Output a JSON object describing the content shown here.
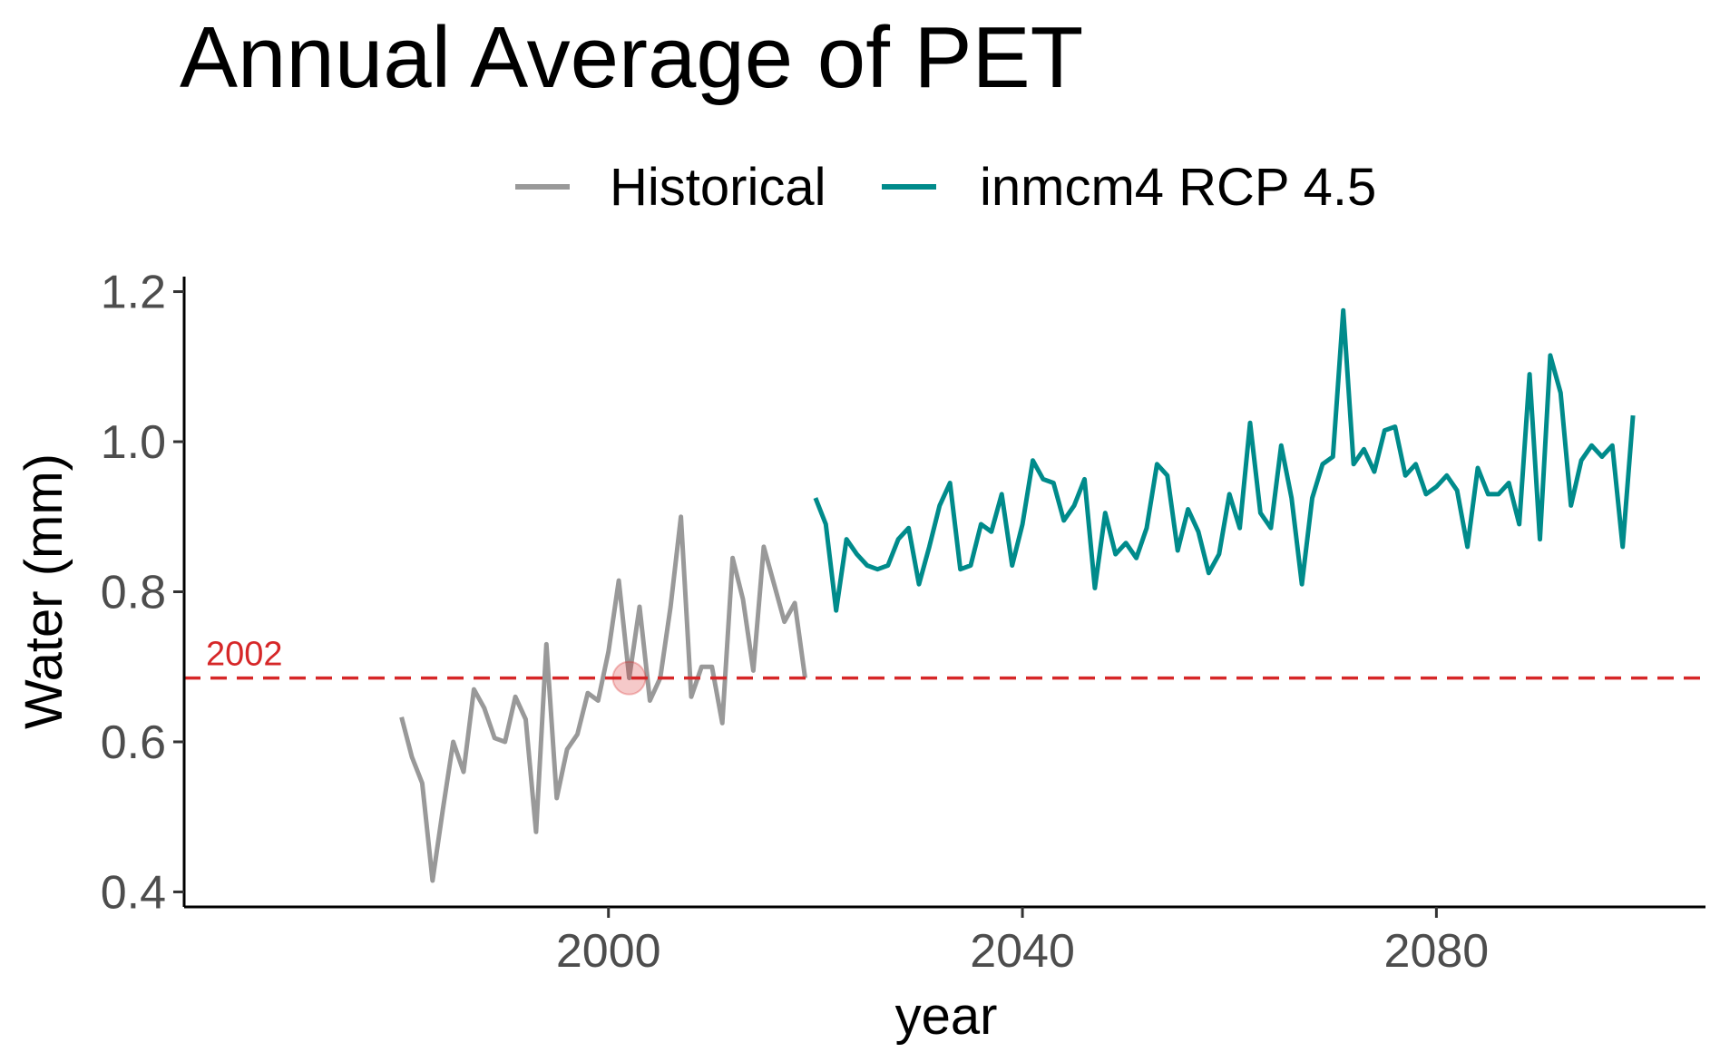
{
  "chart_data": {
    "type": "line",
    "title": "Annual Average of PET",
    "xlabel": "year",
    "ylabel": "Water (mm)",
    "xlim": [
      1959,
      2106
    ],
    "ylim": [
      0.38,
      1.22
    ],
    "x_ticks": [
      2000,
      2040,
      2080
    ],
    "x_tick_labels": [
      "2000",
      "2040",
      "2080"
    ],
    "y_ticks": [
      0.4,
      0.6,
      0.8,
      1.0,
      1.2
    ],
    "y_tick_labels": [
      "0.4",
      "0.6",
      "0.8",
      "1.0",
      "1.2"
    ],
    "grid": false,
    "legend_position": "top",
    "series": [
      {
        "name": "Historical",
        "color": "#999999",
        "x": [
          1980,
          1981,
          1982,
          1983,
          1984,
          1985,
          1986,
          1987,
          1988,
          1989,
          1990,
          1991,
          1992,
          1993,
          1994,
          1995,
          1996,
          1997,
          1998,
          1999,
          2000,
          2001,
          2002,
          2003,
          2004,
          2005,
          2006,
          2007,
          2008,
          2009,
          2010,
          2011,
          2012,
          2013,
          2014,
          2015,
          2016,
          2017,
          2018,
          2019
        ],
        "y": [
          0.633,
          0.58,
          0.545,
          0.415,
          0.51,
          0.6,
          0.56,
          0.67,
          0.645,
          0.605,
          0.6,
          0.66,
          0.63,
          0.48,
          0.73,
          0.525,
          0.59,
          0.61,
          0.665,
          0.655,
          0.72,
          0.815,
          0.685,
          0.78,
          0.655,
          0.685,
          0.78,
          0.9,
          0.66,
          0.7,
          0.7,
          0.625,
          0.845,
          0.79,
          0.695,
          0.86,
          0.81,
          0.76,
          0.785,
          0.685
        ]
      },
      {
        "name": "inmcm4 RCP 4.5",
        "color": "#008B8B",
        "x": [
          2020,
          2021,
          2022,
          2023,
          2024,
          2025,
          2026,
          2027,
          2028,
          2029,
          2030,
          2031,
          2032,
          2033,
          2034,
          2035,
          2036,
          2037,
          2038,
          2039,
          2040,
          2041,
          2042,
          2043,
          2044,
          2045,
          2046,
          2047,
          2048,
          2049,
          2050,
          2051,
          2052,
          2053,
          2054,
          2055,
          2056,
          2057,
          2058,
          2059,
          2060,
          2061,
          2062,
          2063,
          2064,
          2065,
          2066,
          2067,
          2068,
          2069,
          2070,
          2071,
          2072,
          2073,
          2074,
          2075,
          2076,
          2077,
          2078,
          2079,
          2080,
          2081,
          2082,
          2083,
          2084,
          2085,
          2086,
          2087,
          2088,
          2089,
          2090,
          2091,
          2092,
          2093,
          2094,
          2095,
          2096,
          2097,
          2098,
          2099
        ],
        "y": [
          0.925,
          0.89,
          0.775,
          0.87,
          0.85,
          0.835,
          0.83,
          0.835,
          0.87,
          0.885,
          0.81,
          0.86,
          0.915,
          0.945,
          0.83,
          0.835,
          0.89,
          0.88,
          0.93,
          0.835,
          0.89,
          0.975,
          0.95,
          0.945,
          0.895,
          0.915,
          0.95,
          0.805,
          0.905,
          0.85,
          0.865,
          0.845,
          0.885,
          0.97,
          0.955,
          0.855,
          0.91,
          0.88,
          0.825,
          0.85,
          0.93,
          0.885,
          1.025,
          0.905,
          0.885,
          0.995,
          0.925,
          0.81,
          0.925,
          0.97,
          0.98,
          1.175,
          0.97,
          0.99,
          0.96,
          1.015,
          1.02,
          0.955,
          0.97,
          0.93,
          0.94,
          0.955,
          0.935,
          0.86,
          0.965,
          0.93,
          0.93,
          0.945,
          0.89,
          1.09,
          0.87,
          1.115,
          1.065,
          0.915,
          0.975,
          0.995,
          0.98,
          0.995,
          0.86,
          1.035
        ]
      }
    ],
    "annotations": [
      {
        "type": "hline",
        "y": 0.685,
        "label": "2002",
        "color": "#D62728",
        "style": "dashed"
      },
      {
        "type": "point",
        "x": 2002,
        "y": 0.685,
        "color": "#D62728"
      }
    ]
  }
}
